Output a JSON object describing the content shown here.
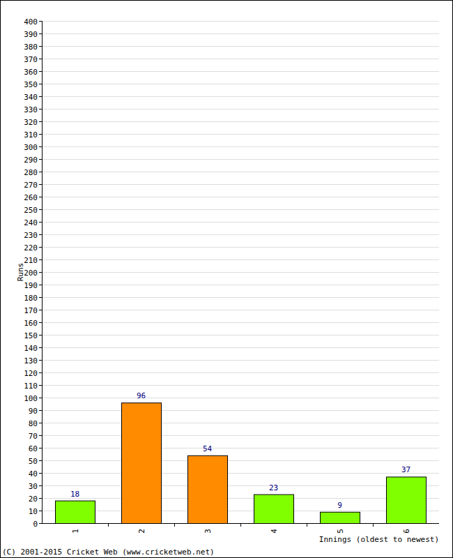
{
  "chart_data": {
    "type": "bar",
    "y_label": "Runs",
    "x_label": "Innings (oldest to newest)",
    "annotations": [
      "(C) 2001-2015 Cricket Web (www.cricketweb.net)"
    ],
    "categories": [
      "1",
      "2",
      "3",
      "4",
      "5",
      "6"
    ],
    "values": [
      18,
      96,
      54,
      23,
      9,
      37
    ],
    "colors": [
      "#80ff00",
      "#ff8c00",
      "#ff8c00",
      "#80ff00",
      "#80ff00",
      "#80ff00"
    ],
    "ylim": [
      0,
      400
    ],
    "yticks": [
      0,
      10,
      20,
      30,
      40,
      50,
      60,
      70,
      80,
      90,
      100,
      110,
      120,
      130,
      140,
      150,
      160,
      170,
      180,
      190,
      200,
      210,
      220,
      230,
      240,
      250,
      260,
      270,
      280,
      290,
      300,
      310,
      320,
      330,
      340,
      350,
      360,
      370,
      380,
      390,
      400
    ],
    "grid": true,
    "data_labels": true
  }
}
